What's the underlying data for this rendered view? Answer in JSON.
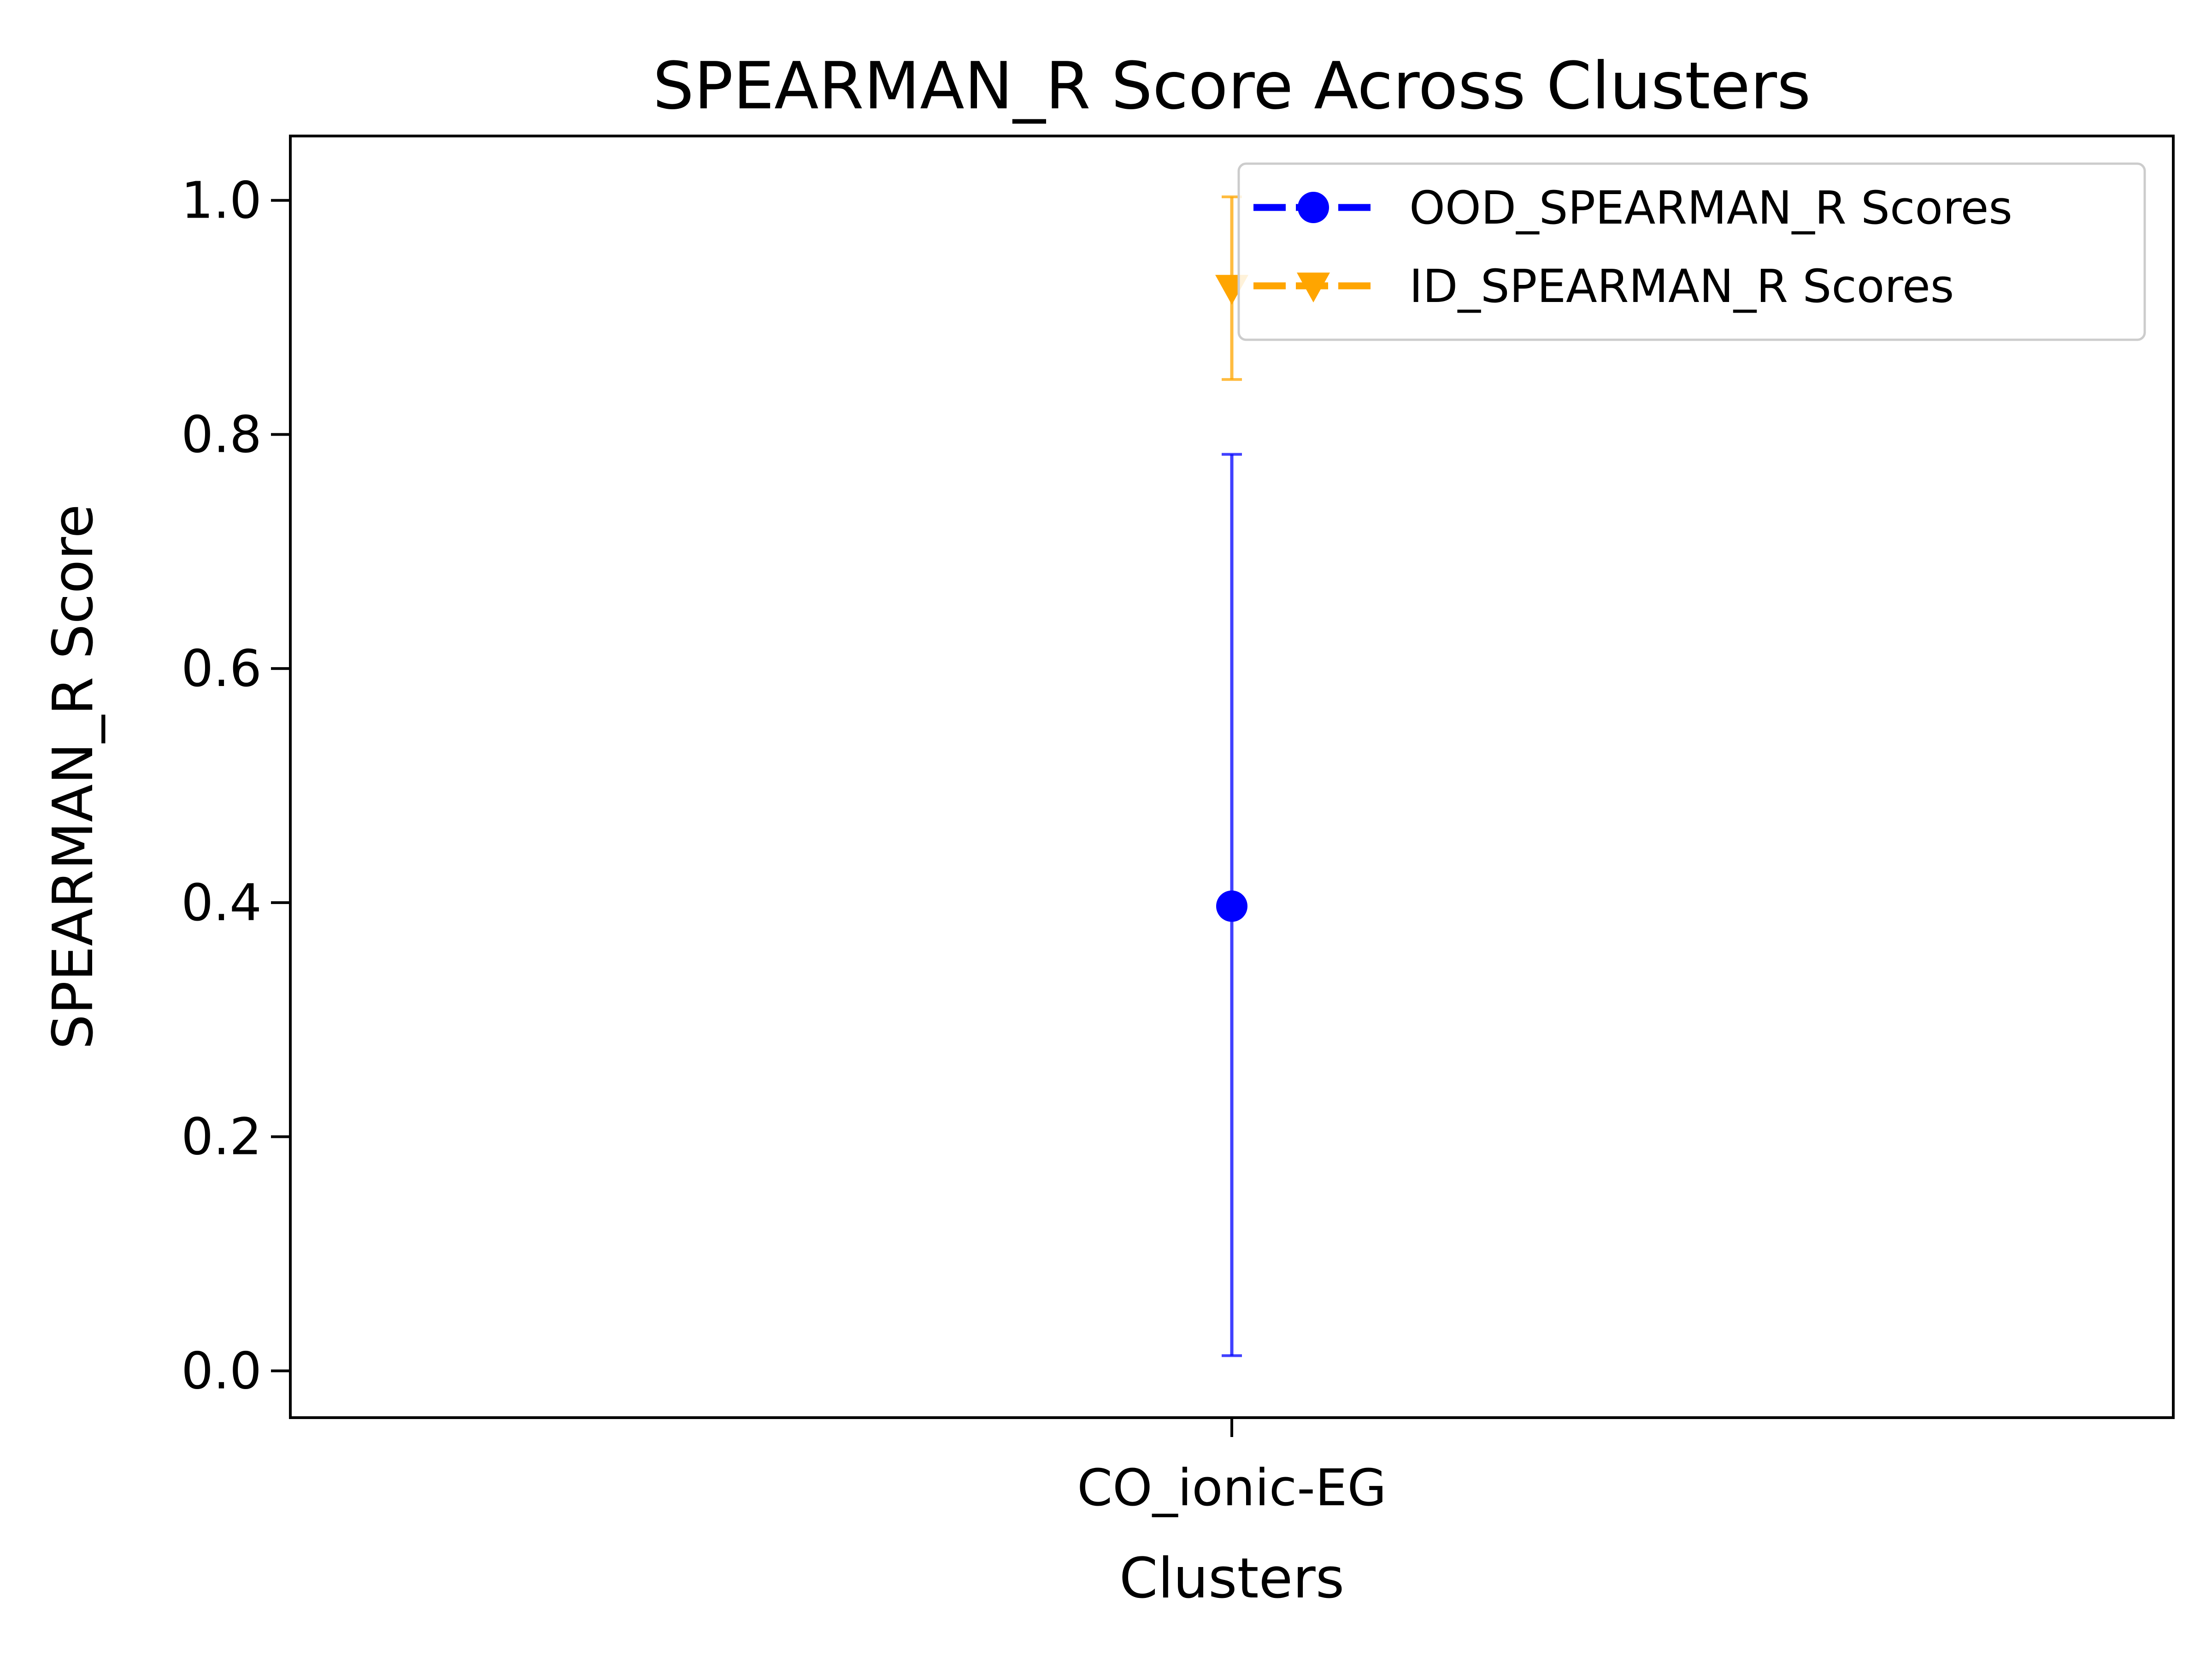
{
  "chart_data": {
    "type": "scatter",
    "title": "SPEARMAN_R Score Across Clusters",
    "xlabel": "Clusters",
    "ylabel": "SPEARMAN_R Score",
    "categories": [
      "CO_ionic-EG"
    ],
    "ylim": [
      -0.04,
      1.055
    ],
    "yticks": [
      0.0,
      0.2,
      0.4,
      0.6,
      0.8,
      1.0
    ],
    "ytick_labels": [
      "0.0",
      "0.2",
      "0.4",
      "0.6",
      "0.8",
      "1.0"
    ],
    "grid": false,
    "legend_position": "top-right",
    "series": [
      {
        "name": "OOD_SPEARMAN_R Scores",
        "color": "#0000ff",
        "marker": "circle",
        "values": [
          0.397
        ],
        "error_low": [
          0.013
        ],
        "error_high": [
          0.783
        ]
      },
      {
        "name": "ID_SPEARMAN_R Scores",
        "color": "#ffa500",
        "marker": "triangle-down",
        "values": [
          0.925
        ],
        "error_low": [
          0.847
        ],
        "error_high": [
          1.003
        ]
      }
    ]
  }
}
